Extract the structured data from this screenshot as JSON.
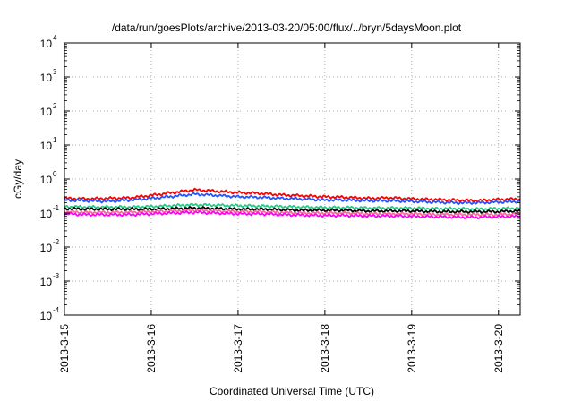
{
  "chart_data": {
    "type": "line",
    "title": "/data/run/goesPlots/archive/2013-03-20/05:00/flux/../bryn/5daysMoon.plot",
    "xlabel": "Coordinated Universal Time (UTC)",
    "ylabel": "cGy/day",
    "yscale": "log",
    "ylim": [
      0.0001,
      10000
    ],
    "xlim": [
      "2013-03-15T00:00",
      "2013-03-20T06:00"
    ],
    "grid": true,
    "x_ticks": [
      "2013-3-15",
      "2013-3-16",
      "2013-3-17",
      "2013-3-18",
      "2013-3-19",
      "2013-3-20"
    ],
    "y_ticks": [
      {
        "base": "10",
        "exp": "-4"
      },
      {
        "base": "10",
        "exp": "-3"
      },
      {
        "base": "10",
        "exp": "-2"
      },
      {
        "base": "10",
        "exp": "-1"
      },
      {
        "base": "10",
        "exp": "0"
      },
      {
        "base": "10",
        "exp": "1"
      },
      {
        "base": "10",
        "exp": "2"
      },
      {
        "base": "10",
        "exp": "3"
      },
      {
        "base": "10",
        "exp": "4"
      }
    ],
    "x": [
      "2013-03-15T00:00",
      "2013-03-15T06:00",
      "2013-03-15T12:00",
      "2013-03-15T18:00",
      "2013-03-16T00:00",
      "2013-03-16T06:00",
      "2013-03-16T12:00",
      "2013-03-16T18:00",
      "2013-03-17T00:00",
      "2013-03-17T06:00",
      "2013-03-17T12:00",
      "2013-03-17T18:00",
      "2013-03-18T00:00",
      "2013-03-18T06:00",
      "2013-03-18T12:00",
      "2013-03-18T18:00",
      "2013-03-19T00:00",
      "2013-03-19T06:00",
      "2013-03-19T12:00",
      "2013-03-19T18:00",
      "2013-03-20T00:00",
      "2013-03-20T06:00"
    ],
    "series": [
      {
        "color": "#ff0000",
        "values": [
          0.27,
          0.26,
          0.27,
          0.28,
          0.33,
          0.4,
          0.48,
          0.44,
          0.4,
          0.38,
          0.34,
          0.32,
          0.3,
          0.29,
          0.27,
          0.28,
          0.26,
          0.25,
          0.24,
          0.23,
          0.25,
          0.26
        ]
      },
      {
        "color": "#2255ff",
        "values": [
          0.24,
          0.23,
          0.22,
          0.24,
          0.27,
          0.31,
          0.36,
          0.33,
          0.3,
          0.29,
          0.27,
          0.26,
          0.24,
          0.24,
          0.23,
          0.23,
          0.22,
          0.21,
          0.2,
          0.2,
          0.21,
          0.22
        ]
      },
      {
        "color": "#22cc88",
        "values": [
          0.155,
          0.15,
          0.15,
          0.15,
          0.155,
          0.165,
          0.175,
          0.17,
          0.165,
          0.16,
          0.155,
          0.15,
          0.145,
          0.145,
          0.14,
          0.14,
          0.14,
          0.135,
          0.135,
          0.13,
          0.135,
          0.14
        ]
      },
      {
        "color": "#000000",
        "values": [
          0.135,
          0.13,
          0.13,
          0.13,
          0.13,
          0.135,
          0.14,
          0.135,
          0.13,
          0.13,
          0.125,
          0.12,
          0.12,
          0.12,
          0.115,
          0.115,
          0.115,
          0.11,
          0.11,
          0.11,
          0.11,
          0.115
        ]
      },
      {
        "color": "#ff6699",
        "values": [
          0.11,
          0.105,
          0.105,
          0.105,
          0.11,
          0.115,
          0.12,
          0.115,
          0.11,
          0.11,
          0.105,
          0.1,
          0.1,
          0.1,
          0.095,
          0.095,
          0.095,
          0.09,
          0.09,
          0.09,
          0.09,
          0.095
        ]
      },
      {
        "color": "#ff00ff",
        "values": [
          0.095,
          0.09,
          0.09,
          0.09,
          0.095,
          0.1,
          0.105,
          0.1,
          0.095,
          0.095,
          0.09,
          0.087,
          0.085,
          0.085,
          0.082,
          0.082,
          0.08,
          0.078,
          0.076,
          0.075,
          0.078,
          0.08
        ]
      }
    ]
  }
}
